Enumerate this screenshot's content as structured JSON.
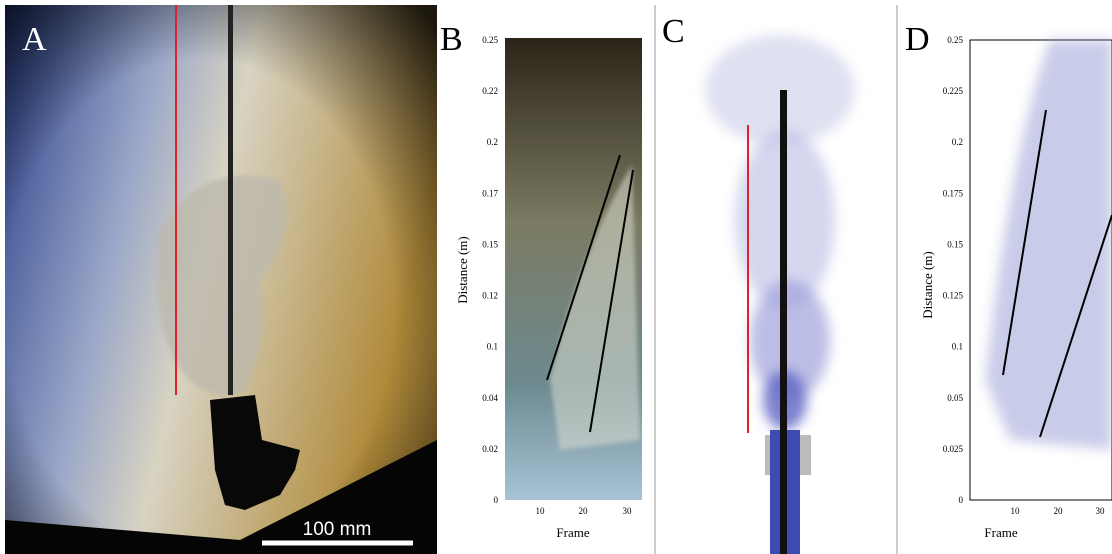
{
  "panels": [
    {
      "label": "A",
      "scale_bar": "100 mm"
    },
    {
      "label": "B",
      "y_label": "Distance (m)",
      "x_label": "Frame",
      "yticks": [
        "0.25",
        "0.22",
        "0.2",
        "0.17",
        "0.15",
        "0.12",
        "0.1",
        "0.04",
        "0.02",
        "0"
      ],
      "xticks": [
        "10",
        "20",
        "30"
      ]
    },
    {
      "label": "C"
    },
    {
      "label": "D",
      "y_label": "Distance (m)",
      "x_label": "Frame",
      "yticks": [
        "0.25",
        "0.225",
        "0.2",
        "0.175",
        "0.15",
        "0.125",
        "0.1",
        "0.05",
        "0.025",
        "0"
      ],
      "xticks": [
        "10",
        "20",
        "30"
      ]
    }
  ]
}
